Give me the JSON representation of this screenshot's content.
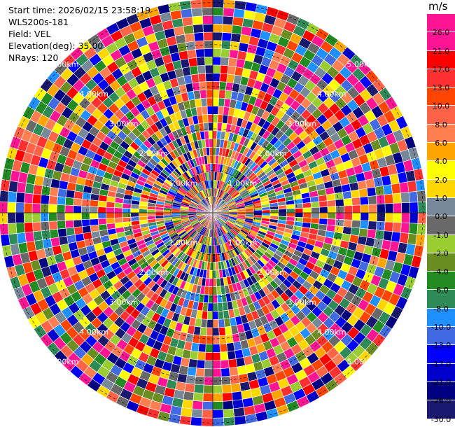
{
  "header": {
    "start_time": "Start time: 2026/02/15 23:58:19",
    "instrument": "WLS200s-181",
    "field": "Field: VEL",
    "elevation": "Elevation(deg): 35.00",
    "nrays": "NRays: 120"
  },
  "colorbar": {
    "unit": "m/s",
    "segments": [
      {
        "color": "#ff1493",
        "label": "26.0"
      },
      {
        "color": "#ff1493",
        "label": "21.0"
      },
      {
        "color": "#ff0000",
        "label": "17.0"
      },
      {
        "color": "#ff3030",
        "label": "13.0"
      },
      {
        "color": "#ff4500",
        "label": "10.0"
      },
      {
        "color": "#ff6347",
        "label": "8.0"
      },
      {
        "color": "#ff7f50",
        "label": "6.0"
      },
      {
        "color": "#ffa500",
        "label": "4.0"
      },
      {
        "color": "#ffff00",
        "label": "2.0"
      },
      {
        "color": "#ffd700",
        "label": "1.0"
      },
      {
        "color": "#778899",
        "label": "0.0"
      },
      {
        "color": "#696969",
        "label": "-1.0"
      },
      {
        "color": "#9acd32",
        "label": "-2.0"
      },
      {
        "color": "#6b8e23",
        "label": "-4.0"
      },
      {
        "color": "#228b22",
        "label": "-6.0"
      },
      {
        "color": "#2e8b57",
        "label": "-8.0"
      },
      {
        "color": "#1e90ff",
        "label": "-10.0"
      },
      {
        "color": "#4169e1",
        "label": "-13.0"
      },
      {
        "color": "#0000ff",
        "label": "-17.0"
      },
      {
        "color": "#0000cd",
        "label": "-21.0"
      },
      {
        "color": "#000080",
        "label": "-26.0"
      },
      {
        "color": "#191970",
        "label": "-30.0"
      }
    ]
  },
  "chart_data": {
    "type": "heatmap",
    "projection": "polar-ppi",
    "rays": 120,
    "range_gates": 26,
    "range_ring_labels": [
      "1.00km",
      "2.00km",
      "3.00km",
      "4.00km",
      "5.00km"
    ],
    "unit": "m/s",
    "value_range": [
      -30.0,
      26.0
    ],
    "grid": true,
    "colorbar_placement": "right"
  }
}
